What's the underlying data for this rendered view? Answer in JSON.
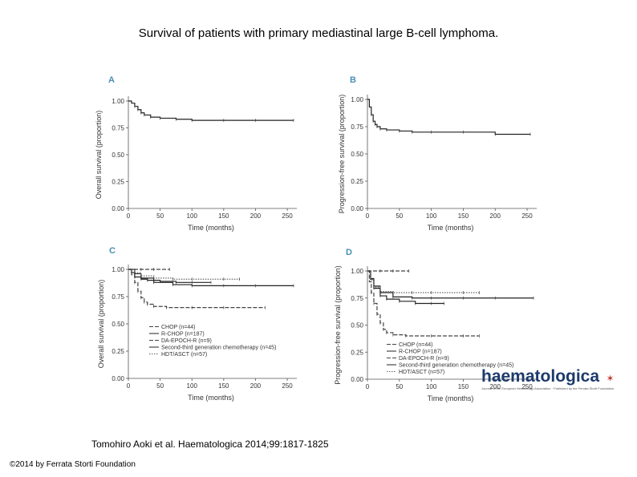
{
  "slide": {
    "title": "Survival of patients with primary mediastinal large B-cell lymphoma.",
    "citation": "Tomohiro Aoki et al. Haematologica 2014;99:1817-1825",
    "copyright": "©2014 by Ferrata Storti Foundation",
    "logo": {
      "text": "haematologica",
      "subtext": "Journal of the European Hematology Association · Published by the Ferrata Storti Foundation",
      "color": "#1d3a6b",
      "accent": "#c0392b"
    }
  },
  "chart_data": [
    {
      "panel": "A",
      "type": "line",
      "xlabel": "Time (months)",
      "ylabel": "Overall survival (proportion)",
      "xlim": [
        0,
        260
      ],
      "ylim": [
        0,
        1
      ],
      "xticks": [
        "0",
        "50",
        "100",
        "150",
        "200",
        "250"
      ],
      "yticks": [
        "0.00",
        "0.25",
        "0.50",
        "0.75",
        "1.00"
      ],
      "series": [
        {
          "x": [
            0,
            5,
            10,
            15,
            20,
            25,
            35,
            50,
            75,
            100,
            150,
            200,
            260
          ],
          "y": [
            1.0,
            0.98,
            0.95,
            0.92,
            0.89,
            0.87,
            0.85,
            0.84,
            0.83,
            0.82,
            0.82,
            0.82,
            0.82
          ],
          "style": "solid"
        }
      ]
    },
    {
      "panel": "B",
      "type": "line",
      "xlabel": "Time (months)",
      "ylabel": "Progression-free survival (proportion)",
      "xlim": [
        0,
        260
      ],
      "ylim": [
        0,
        1
      ],
      "xticks": [
        "0",
        "50",
        "100",
        "150",
        "200",
        "250"
      ],
      "yticks": [
        "0.00",
        "0.25",
        "0.50",
        "0.75",
        "1.00"
      ],
      "series": [
        {
          "x": [
            0,
            3,
            6,
            9,
            12,
            15,
            20,
            30,
            50,
            70,
            100,
            150,
            200,
            255
          ],
          "y": [
            1.0,
            0.93,
            0.86,
            0.8,
            0.77,
            0.75,
            0.73,
            0.72,
            0.71,
            0.7,
            0.7,
            0.7,
            0.68,
            0.68
          ],
          "style": "solid"
        }
      ]
    },
    {
      "panel": "C",
      "type": "line",
      "xlabel": "Time (months)",
      "ylabel": "Overall survival (proportion)",
      "xlim": [
        0,
        260
      ],
      "ylim": [
        0,
        1
      ],
      "xticks": [
        "0",
        "50",
        "100",
        "150",
        "200",
        "250"
      ],
      "yticks": [
        "0.00",
        "0.25",
        "0.50",
        "0.75",
        "1.00"
      ],
      "series": [
        {
          "name": "CHOP (n=44)",
          "x": [
            0,
            5,
            10,
            15,
            20,
            25,
            30,
            40,
            60,
            100,
            150,
            215
          ],
          "y": [
            1.0,
            0.95,
            0.88,
            0.8,
            0.74,
            0.7,
            0.68,
            0.66,
            0.65,
            0.65,
            0.65,
            0.65
          ],
          "style": "dashed"
        },
        {
          "name": "R-CHOP (n=187)",
          "x": [
            0,
            5,
            10,
            20,
            30,
            50,
            75,
            100,
            130
          ],
          "y": [
            1.0,
            0.97,
            0.93,
            0.91,
            0.9,
            0.89,
            0.88,
            0.88,
            0.88
          ],
          "style": "solid"
        },
        {
          "name": "DA-EPOCH-R (n=9)",
          "x": [
            0,
            10,
            20,
            40,
            65
          ],
          "y": [
            1.0,
            1.0,
            1.0,
            1.0,
            1.0
          ],
          "style": "dashed"
        },
        {
          "name": "Second-third generation chemotherapy (n=45)",
          "x": [
            0,
            10,
            20,
            40,
            70,
            100,
            150,
            200,
            260
          ],
          "y": [
            1.0,
            0.96,
            0.92,
            0.88,
            0.86,
            0.85,
            0.85,
            0.85,
            0.85
          ],
          "style": "solid"
        },
        {
          "name": "HDT/ASCT (n=57)",
          "x": [
            0,
            10,
            20,
            40,
            70,
            100,
            150,
            175
          ],
          "y": [
            1.0,
            0.97,
            0.94,
            0.92,
            0.91,
            0.91,
            0.91,
            0.91
          ],
          "style": "dotted"
        }
      ],
      "legend": "bottom-right"
    },
    {
      "panel": "D",
      "type": "line",
      "xlabel": "Time (months)",
      "ylabel": "Progression-free survival (proportion)",
      "xlim": [
        0,
        260
      ],
      "ylim": [
        0,
        1
      ],
      "xticks": [
        "0",
        "50",
        "100",
        "150",
        "200",
        "250"
      ],
      "yticks": [
        "0.00",
        "0.25",
        "0.50",
        "0.75",
        "1.00"
      ],
      "series": [
        {
          "name": "CHOP (n=44)",
          "x": [
            0,
            3,
            6,
            10,
            15,
            20,
            25,
            30,
            40,
            60,
            100,
            150,
            175
          ],
          "y": [
            1.0,
            0.9,
            0.8,
            0.7,
            0.6,
            0.52,
            0.46,
            0.43,
            0.41,
            0.4,
            0.4,
            0.4,
            0.4
          ],
          "style": "dashed"
        },
        {
          "name": "R-CHOP (n=187)",
          "x": [
            0,
            5,
            10,
            20,
            30,
            50,
            75,
            100,
            120
          ],
          "y": [
            1.0,
            0.92,
            0.84,
            0.77,
            0.74,
            0.72,
            0.7,
            0.7,
            0.7
          ],
          "style": "solid"
        },
        {
          "name": "DA-EPOCH-R (n=9)",
          "x": [
            0,
            10,
            20,
            40,
            65
          ],
          "y": [
            1.0,
            1.0,
            1.0,
            1.0,
            1.0
          ],
          "style": "dashed"
        },
        {
          "name": "Second-third generation chemotherapy (n=45)",
          "x": [
            0,
            5,
            10,
            20,
            40,
            70,
            100,
            150,
            200,
            260
          ],
          "y": [
            1.0,
            0.93,
            0.86,
            0.8,
            0.76,
            0.75,
            0.75,
            0.75,
            0.75,
            0.75
          ],
          "style": "solid"
        },
        {
          "name": "HDT/ASCT (n=57)",
          "x": [
            0,
            5,
            10,
            20,
            40,
            70,
            100,
            150,
            175
          ],
          "y": [
            1.0,
            0.92,
            0.85,
            0.81,
            0.8,
            0.8,
            0.8,
            0.8,
            0.8
          ],
          "style": "dotted"
        }
      ],
      "legend": "bottom-right"
    }
  ]
}
